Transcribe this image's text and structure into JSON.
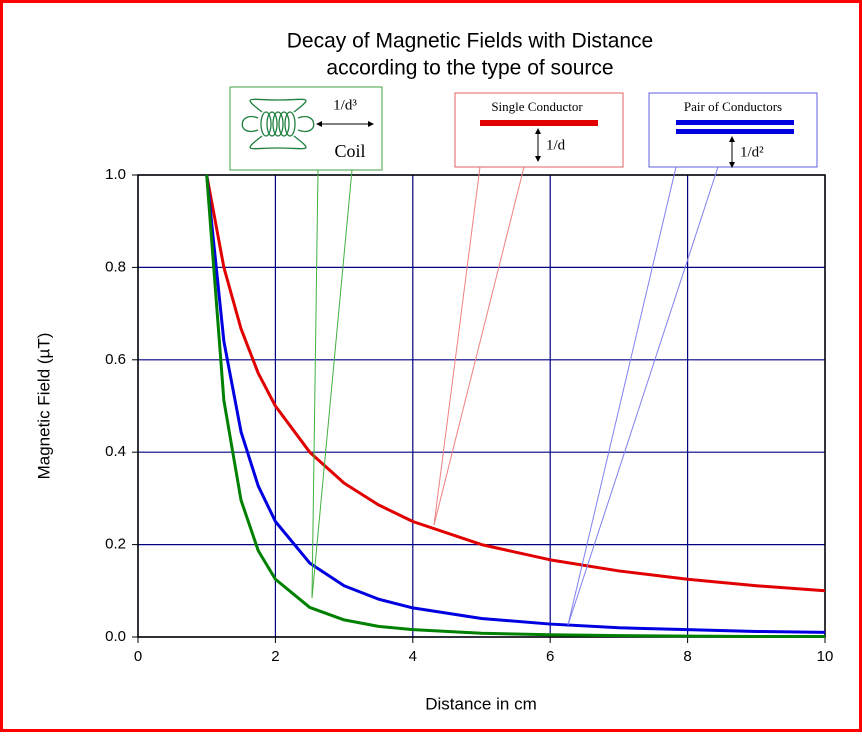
{
  "chart_data": {
    "type": "line",
    "title": "Decay of Magnetic Fields with Distance",
    "subtitle": "according to the type of source",
    "x_label": "Distance in cm",
    "y_label": "Magnetic Field (µT)",
    "x": [
      1,
      1.25,
      1.5,
      1.75,
      2,
      2.5,
      3,
      3.5,
      4,
      5,
      6,
      7,
      8,
      9,
      10
    ],
    "series": [
      {
        "color": "#e00000",
        "values": [
          1,
          0.8,
          0.667,
          0.571,
          0.5,
          0.4,
          0.333,
          0.286,
          0.25,
          0.2,
          0.167,
          0.143,
          0.125,
          0.111,
          0.1
        ]
      },
      {
        "color": "#0000e0",
        "values": [
          1,
          0.64,
          0.444,
          0.327,
          0.25,
          0.16,
          0.111,
          0.082,
          0.063,
          0.04,
          0.028,
          0.02,
          0.016,
          0.012,
          0.01
        ]
      },
      {
        "color": "#008000",
        "values": [
          1,
          0.512,
          0.296,
          0.187,
          0.125,
          0.064,
          0.037,
          0.023,
          0.016,
          0.008,
          0.005,
          0.003,
          0.002,
          0.001,
          0.001
        ]
      }
    ],
    "xlim": [
      0,
      10
    ],
    "xticks": [
      0,
      2,
      4,
      6,
      8,
      10
    ],
    "ylim": [
      0,
      1
    ],
    "yticks": [
      {
        "value": 0,
        "label": "0.0"
      },
      0.2,
      0.4,
      0.6,
      0.8,
      {
        "value": 1,
        "label": "1.0"
      }
    ],
    "grid": true,
    "annotations": [
      "1/d³",
      "Coil",
      "Single Conductor",
      "1/d",
      "Pair of Conductors",
      "1/d²"
    ]
  }
}
